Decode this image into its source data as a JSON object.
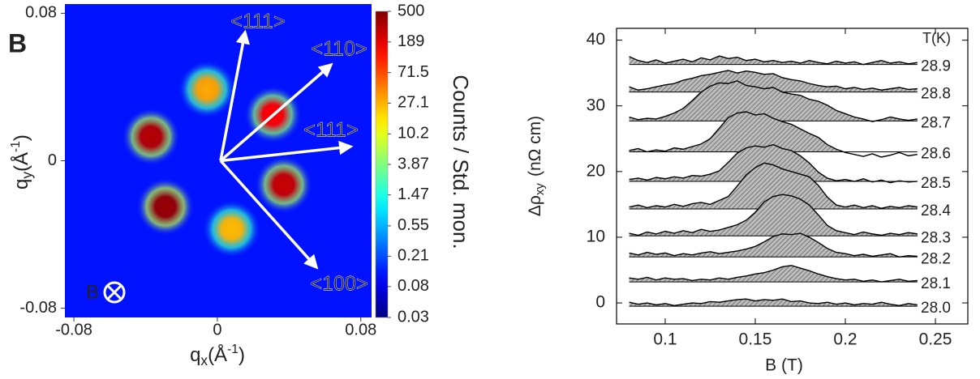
{
  "chart_data": [
    {
      "type": "heatmap",
      "panel_label": "B",
      "x_label": {
        "symbol": "q",
        "subscript": "x",
        "unit": "(Å",
        "superscript": "-1",
        "close": ")"
      },
      "y_label": {
        "symbol": "q",
        "subscript": "y",
        "unit": "(Å",
        "superscript": "-1",
        "close": ")"
      },
      "xlim": [
        -0.085,
        0.086
      ],
      "ylim": [
        -0.085,
        0.085
      ],
      "xticks": [
        -0.08,
        0,
        0.08
      ],
      "yticks": [
        -0.08,
        0,
        0.08
      ],
      "colorbar_label": "Counts / Std. mon.",
      "colormap": "jet",
      "log_color": true,
      "clim": [
        0.03,
        500
      ],
      "cticks": [
        500,
        189,
        71.5,
        27.1,
        10.2,
        3.87,
        1.47,
        0.55,
        0.21,
        0.08,
        0.03
      ],
      "background": 0.12,
      "peaks": {
        "qx": [
          -0.0057,
          0.031,
          -0.037,
          0.037,
          -0.029,
          0.008
        ],
        "qy": [
          0.0387,
          0.025,
          0.013,
          -0.013,
          -0.025,
          -0.037
        ],
        "intensity": [
          30,
          150,
          300,
          250,
          400,
          25
        ]
      },
      "annotations": [
        "<111>",
        "<110>",
        "<111>",
        "<100>"
      ],
      "field_label": "B"
    },
    {
      "type": "line",
      "x_label": "B (T)",
      "y_label": {
        "symbol": "Δρ",
        "subscript": "xy",
        "unit": "(nΩ cm)"
      },
      "legend_title": "T(K)",
      "xlim": [
        0.073,
        0.268
      ],
      "ylim": [
        -3.2,
        41.8
      ],
      "xticks": [
        0.1,
        0.15,
        0.2,
        0.25
      ],
      "yticks": [
        0,
        10,
        20,
        30,
        40
      ],
      "x": [
        0.08,
        0.085,
        0.09,
        0.095,
        0.1,
        0.105,
        0.11,
        0.115,
        0.12,
        0.125,
        0.13,
        0.135,
        0.14,
        0.145,
        0.15,
        0.155,
        0.16,
        0.165,
        0.17,
        0.175,
        0.18,
        0.185,
        0.19,
        0.195,
        0.2,
        0.205,
        0.21,
        0.215,
        0.22,
        0.225,
        0.23,
        0.235,
        0.24
      ],
      "series": [
        {
          "name": "28.9",
          "color": "#000000",
          "baseline": 36.3,
          "values": [
            37.5,
            36.9,
            36.6,
            37.0,
            36.5,
            36.8,
            37.1,
            36.7,
            37.3,
            37.0,
            37.6,
            37.2,
            37.4,
            36.9,
            37.1,
            36.7,
            36.9,
            36.6,
            36.8,
            36.5,
            36.9,
            36.6,
            36.4,
            36.8,
            36.5,
            36.7,
            36.3,
            36.6,
            36.9,
            36.5,
            36.7,
            36.4,
            36.6
          ]
        },
        {
          "name": "28.8",
          "color": "#000000",
          "baseline": 32.1,
          "values": [
            32.9,
            32.4,
            32.6,
            32.9,
            33.2,
            33.4,
            33.9,
            34.2,
            34.6,
            34.8,
            35.1,
            35.4,
            35.0,
            35.3,
            35.1,
            34.8,
            34.9,
            34.3,
            34.0,
            33.8,
            33.4,
            33.1,
            32.9,
            33.0,
            32.6,
            32.8,
            32.5,
            32.7,
            32.4,
            32.6,
            32.8,
            32.5,
            32.6
          ]
        },
        {
          "name": "28.7",
          "color": "#000000",
          "baseline": 27.7,
          "values": [
            28.3,
            27.9,
            28.1,
            28.0,
            28.4,
            28.9,
            29.6,
            30.8,
            32.1,
            33.0,
            33.5,
            33.4,
            33.8,
            33.1,
            32.9,
            32.6,
            32.8,
            32.1,
            31.8,
            31.6,
            31.0,
            30.7,
            30.1,
            29.3,
            28.8,
            28.3,
            28.0,
            27.6,
            27.9,
            28.3,
            28.0,
            27.8,
            28.0
          ]
        },
        {
          "name": "28.6",
          "color": "#000000",
          "baseline": 23.0,
          "values": [
            23.2,
            23.5,
            23.0,
            23.3,
            23.1,
            23.6,
            23.4,
            23.8,
            24.2,
            25.0,
            26.6,
            28.2,
            28.9,
            29.1,
            28.6,
            28.8,
            28.1,
            27.6,
            27.2,
            26.5,
            25.8,
            25.2,
            24.1,
            23.4,
            22.9,
            22.6,
            22.3,
            22.7,
            22.2,
            22.5,
            22.9,
            22.4,
            22.6
          ]
        },
        {
          "name": "28.5",
          "color": "#000000",
          "baseline": 18.5,
          "values": [
            18.8,
            19.0,
            18.7,
            19.1,
            18.9,
            19.2,
            19.0,
            19.4,
            19.3,
            19.6,
            20.1,
            21.4,
            22.8,
            23.6,
            23.9,
            23.7,
            24.1,
            23.5,
            23.2,
            22.4,
            21.3,
            19.9,
            19.0,
            18.6,
            18.8,
            18.5,
            18.9,
            18.4,
            18.7,
            18.3,
            18.6,
            18.4,
            18.5
          ]
        },
        {
          "name": "28.4",
          "color": "#000000",
          "baseline": 14.3,
          "values": [
            14.6,
            14.9,
            14.5,
            14.8,
            14.6,
            15.0,
            14.7,
            15.1,
            15.3,
            15.0,
            15.6,
            16.2,
            17.8,
            19.5,
            20.6,
            21.3,
            21.0,
            20.4,
            20.0,
            19.6,
            19.2,
            17.9,
            16.1,
            14.9,
            14.6,
            14.9,
            14.5,
            14.8,
            14.4,
            14.7,
            14.5,
            14.8,
            14.6
          ]
        },
        {
          "name": "28.3",
          "color": "#000000",
          "baseline": 10.2,
          "values": [
            10.6,
            10.3,
            10.8,
            10.5,
            10.9,
            10.6,
            11.0,
            10.7,
            11.2,
            10.9,
            11.1,
            11.5,
            11.9,
            12.6,
            13.8,
            15.4,
            16.2,
            16.5,
            16.3,
            15.8,
            14.9,
            13.4,
            11.8,
            11.0,
            10.7,
            10.4,
            10.8,
            10.5,
            10.3,
            10.6,
            10.4,
            10.7,
            10.5
          ]
        },
        {
          "name": "28.2",
          "color": "#000000",
          "baseline": 7.0,
          "values": [
            7.6,
            7.3,
            7.7,
            7.4,
            7.6,
            7.2,
            7.5,
            7.3,
            7.6,
            7.8,
            7.5,
            7.7,
            7.9,
            8.2,
            8.6,
            9.3,
            10.1,
            10.5,
            10.4,
            10.6,
            10.0,
            9.2,
            8.3,
            7.7,
            7.5,
            7.2,
            7.4,
            7.1,
            7.3,
            7.5,
            7.0,
            7.2,
            7.1
          ]
        },
        {
          "name": "28.1",
          "color": "#000000",
          "baseline": 3.2,
          "values": [
            3.8,
            3.6,
            3.9,
            3.5,
            3.8,
            3.6,
            3.7,
            3.4,
            3.6,
            3.5,
            3.8,
            3.6,
            3.9,
            4.1,
            4.4,
            4.6,
            5.0,
            5.5,
            5.7,
            5.3,
            4.9,
            4.4,
            4.0,
            3.7,
            3.5,
            3.6,
            3.3,
            3.5,
            3.2,
            3.4,
            3.6,
            3.3,
            3.4
          ]
        },
        {
          "name": "28.0",
          "color": "#000000",
          "baseline": -0.5,
          "values": [
            0.1,
            -0.2,
            0.0,
            -0.3,
            -0.1,
            -0.4,
            -0.2,
            0.0,
            -0.1,
            0.2,
            0.1,
            0.3,
            0.5,
            0.6,
            0.3,
            0.5,
            0.4,
            0.6,
            0.2,
            0.3,
            0.0,
            -0.1,
            0.1,
            -0.2,
            0.0,
            -0.3,
            -0.1,
            -0.2,
            0.1,
            -0.2,
            -0.4,
            -0.1,
            -0.3
          ]
        }
      ]
    }
  ]
}
